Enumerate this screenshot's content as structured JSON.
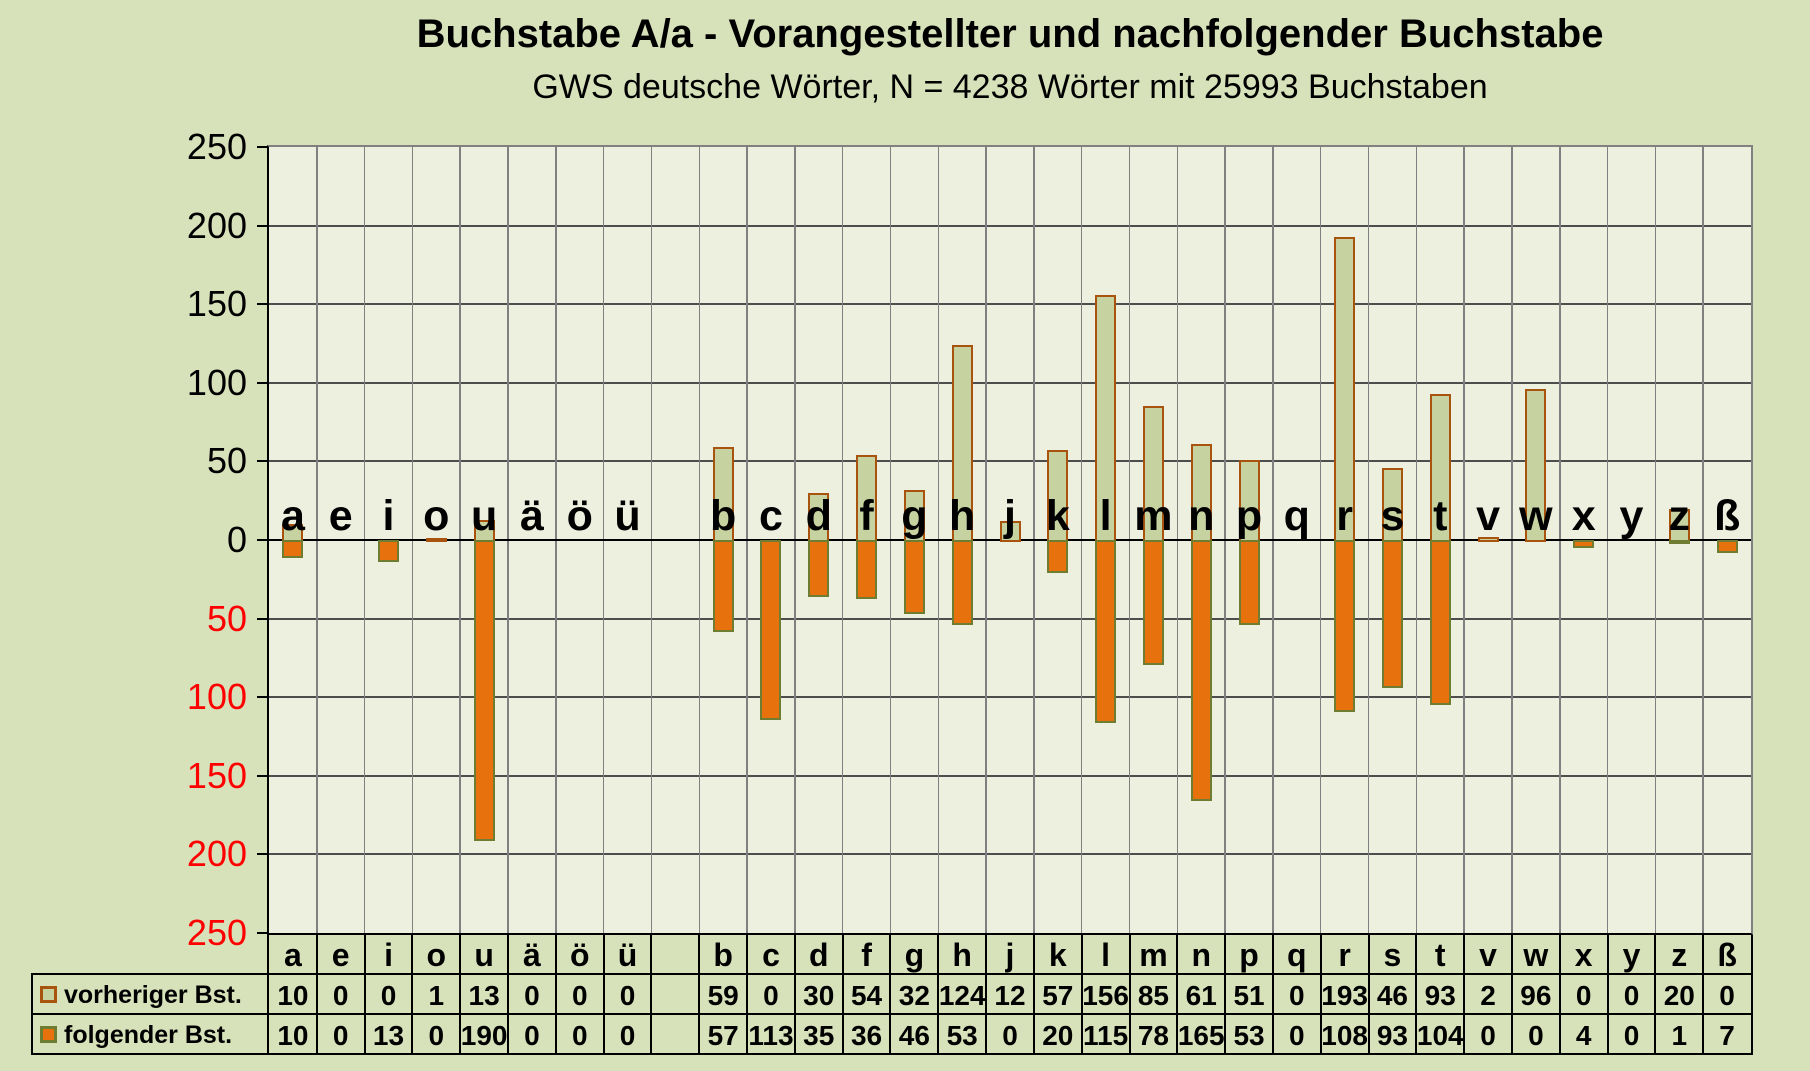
{
  "title": "Buchstabe A/a - Vorangestellter und nachfolgender Buchstabe",
  "subtitle": "GWS deutsche Wörter, N = 4238 Wörter mit 25993 Buchstaben",
  "chart_data": {
    "type": "bar",
    "diverging": true,
    "title": "Buchstabe A/a - Vorangestellter und nachfolgender Buchstabe",
    "subtitle": "GWS deutsche Wörter, N = 4238 Wörter mit 25993 Buchstaben",
    "categories": [
      "a",
      "e",
      "i",
      "o",
      "u",
      "ä",
      "ö",
      "ü",
      "",
      "b",
      "c",
      "d",
      "f",
      "g",
      "h",
      "j",
      "k",
      "l",
      "m",
      "n",
      "p",
      "q",
      "r",
      "s",
      "t",
      "v",
      "w",
      "x",
      "y",
      "z",
      "ß"
    ],
    "series": [
      {
        "name": "vorheriger Bst.",
        "direction": "up",
        "values": [
          10,
          0,
          0,
          1,
          13,
          0,
          0,
          0,
          null,
          59,
          0,
          30,
          54,
          32,
          124,
          12,
          57,
          156,
          85,
          61,
          51,
          0,
          193,
          46,
          93,
          2,
          96,
          0,
          0,
          20,
          0
        ],
        "fill": "#c6d3a0",
        "border": "#a8540e"
      },
      {
        "name": "folgender Bst.",
        "direction": "down",
        "values": [
          10,
          0,
          13,
          0,
          190,
          0,
          0,
          0,
          null,
          57,
          113,
          35,
          36,
          46,
          53,
          0,
          20,
          115,
          78,
          165,
          53,
          0,
          108,
          93,
          104,
          0,
          0,
          4,
          0,
          1,
          7
        ],
        "fill": "#e7720d",
        "border": "#6f7d33"
      }
    ],
    "y_axis": {
      "min": -250,
      "max": 250,
      "step": 50,
      "upper_label_color": "#000000",
      "lower_label_color": "#ff0000",
      "labels_shown_as_absolute": true
    },
    "grid": true,
    "legend_position": "bottom-table"
  },
  "colors": {
    "page_bg": "#d7e2bb",
    "plot_bg": "#edefdf",
    "grid_h": "#4d4d4d",
    "grid_v": "#808080",
    "axis": "#000000",
    "plot_border": "#808080",
    "table_border": "#000000",
    "red_label": "#ff0000"
  }
}
